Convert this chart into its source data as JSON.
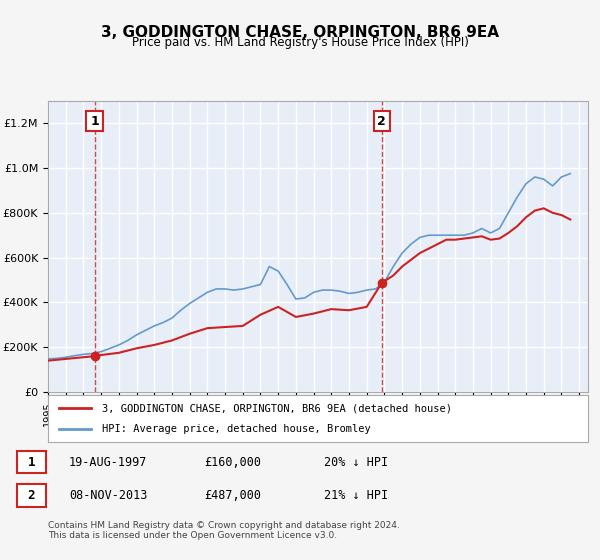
{
  "title": "3, GODDINGTON CHASE, ORPINGTON, BR6 9EA",
  "subtitle": "Price paid vs. HM Land Registry's House Price Index (HPI)",
  "bg_color": "#f0f4ff",
  "plot_bg_color": "#e8eef8",
  "grid_color": "#ffffff",
  "hpi_color": "#6699cc",
  "price_color": "#cc2222",
  "marker_color": "#cc2222",
  "xlabel": "",
  "ylabel": "",
  "ylim": [
    0,
    1300000
  ],
  "xlim_start": 1995.0,
  "xlim_end": 2025.5,
  "sale1_x": 1997.63,
  "sale1_y": 160000,
  "sale2_x": 2013.85,
  "sale2_y": 487000,
  "legend_label_price": "3, GODDINGTON CHASE, ORPINGTON, BR6 9EA (detached house)",
  "legend_label_hpi": "HPI: Average price, detached house, Bromley",
  "annotation1_label": "1",
  "annotation2_label": "2",
  "table_row1": [
    "1",
    "19-AUG-1997",
    "£160,000",
    "20% ↓ HPI"
  ],
  "table_row2": [
    "2",
    "08-NOV-2013",
    "£487,000",
    "21% ↓ HPI"
  ],
  "footer": "Contains HM Land Registry data © Crown copyright and database right 2024.\nThis data is licensed under the Open Government Licence v3.0.",
  "hpi_data_x": [
    1995.0,
    1995.5,
    1996.0,
    1996.5,
    1997.0,
    1997.5,
    1998.0,
    1998.5,
    1999.0,
    1999.5,
    2000.0,
    2000.5,
    2001.0,
    2001.5,
    2002.0,
    2002.5,
    2003.0,
    2003.5,
    2004.0,
    2004.5,
    2005.0,
    2005.5,
    2006.0,
    2006.5,
    2007.0,
    2007.5,
    2008.0,
    2008.5,
    2009.0,
    2009.5,
    2010.0,
    2010.5,
    2011.0,
    2011.5,
    2012.0,
    2012.5,
    2013.0,
    2013.5,
    2014.0,
    2014.5,
    2015.0,
    2015.5,
    2016.0,
    2016.5,
    2017.0,
    2017.5,
    2018.0,
    2018.5,
    2019.0,
    2019.5,
    2020.0,
    2020.5,
    2021.0,
    2021.5,
    2022.0,
    2022.5,
    2023.0,
    2023.5,
    2024.0,
    2024.5
  ],
  "hpi_data_y": [
    148000,
    150000,
    155000,
    162000,
    168000,
    172000,
    180000,
    195000,
    210000,
    230000,
    255000,
    275000,
    295000,
    310000,
    330000,
    365000,
    395000,
    420000,
    445000,
    460000,
    460000,
    455000,
    460000,
    470000,
    480000,
    560000,
    540000,
    480000,
    415000,
    420000,
    445000,
    455000,
    455000,
    450000,
    440000,
    445000,
    455000,
    460000,
    490000,
    560000,
    620000,
    660000,
    690000,
    700000,
    700000,
    700000,
    700000,
    700000,
    710000,
    730000,
    710000,
    730000,
    800000,
    870000,
    930000,
    960000,
    950000,
    920000,
    960000,
    975000
  ],
  "price_data_x": [
    1995.0,
    1997.63,
    1998.0,
    1999.0,
    2000.0,
    2001.0,
    2002.0,
    2003.0,
    2004.0,
    2005.0,
    2006.0,
    2007.0,
    2008.0,
    2009.0,
    2010.0,
    2011.0,
    2012.0,
    2013.0,
    2013.85,
    2014.5,
    2015.0,
    2015.5,
    2016.0,
    2016.5,
    2017.0,
    2017.5,
    2018.0,
    2018.5,
    2019.0,
    2019.5,
    2020.0,
    2020.5,
    2021.0,
    2021.5,
    2022.0,
    2022.5,
    2023.0,
    2023.5,
    2024.0,
    2024.5
  ],
  "price_data_y": [
    140000,
    160000,
    165000,
    175000,
    195000,
    210000,
    230000,
    260000,
    285000,
    290000,
    295000,
    345000,
    380000,
    335000,
    350000,
    370000,
    365000,
    380000,
    487000,
    520000,
    560000,
    590000,
    620000,
    640000,
    660000,
    680000,
    680000,
    685000,
    690000,
    695000,
    680000,
    685000,
    710000,
    740000,
    780000,
    810000,
    820000,
    800000,
    790000,
    770000
  ]
}
